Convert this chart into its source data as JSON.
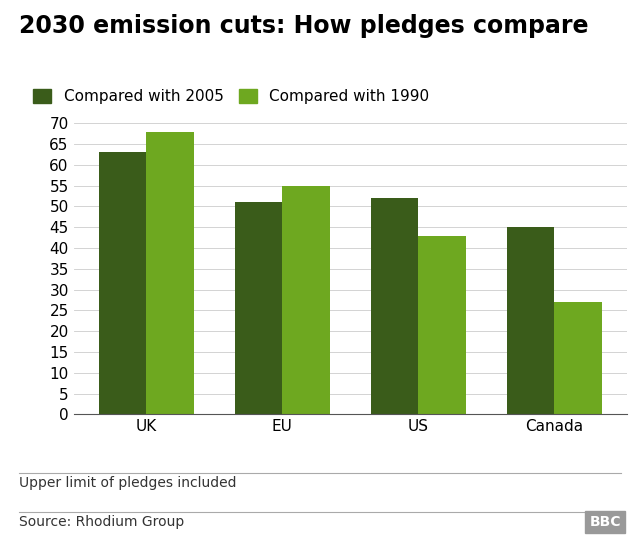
{
  "title": "2030 emission cuts: How pledges compare",
  "categories": [
    "UK",
    "EU",
    "US",
    "Canada"
  ],
  "series": {
    "2005": [
      63,
      51,
      52,
      45
    ],
    "1990": [
      68,
      55,
      43,
      27
    ]
  },
  "color_2005": "#3a5c1a",
  "color_1990": "#6ea820",
  "legend_label_2005": "Compared with 2005",
  "legend_label_1990": "Compared with 1990",
  "ylim": [
    0,
    70
  ],
  "yticks": [
    0,
    5,
    10,
    15,
    20,
    25,
    30,
    35,
    40,
    45,
    50,
    55,
    60,
    65,
    70
  ],
  "footnote": "Upper limit of pledges included",
  "source": "Source: Rhodium Group",
  "bbc_label": "BBC",
  "background_color": "#ffffff",
  "bar_width": 0.35,
  "title_fontsize": 17,
  "axis_fontsize": 11,
  "legend_fontsize": 11,
  "footnote_fontsize": 10,
  "bbc_bg_color": "#999999"
}
